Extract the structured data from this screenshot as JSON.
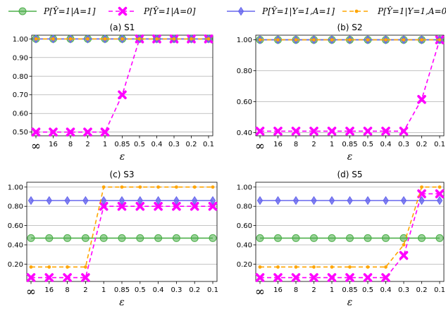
{
  "legend": [
    {
      "label": "P[Ŷ=1|A=1]",
      "color": "#4daf4a",
      "marker": "circle",
      "dash": ""
    },
    {
      "label": "P[Ŷ=1|A=0]",
      "color": "#ff00ff",
      "marker": "x",
      "dash": "6,4"
    },
    {
      "label": "P[Ŷ=1|Y=1,A=1]",
      "color": "#6666ee",
      "marker": "diamond",
      "dash": ""
    },
    {
      "label": "P[Ŷ=1|Y=1,A=0]",
      "color": "#ffa500",
      "marker": "dot",
      "dash": "6,4"
    }
  ],
  "chart_data": [
    {
      "type": "line",
      "title": "(a) S1",
      "xlabel": "ε",
      "categories": [
        "∞",
        "16",
        "8",
        "2",
        "1",
        "0.85",
        "0.5",
        "0.4",
        "0.3",
        "0.2",
        "0.1"
      ],
      "ylim": [
        0.48,
        1.02
      ],
      "yticks": [
        0.5,
        0.6,
        0.7,
        0.8,
        0.9,
        1.0
      ],
      "ytick_labels": [
        "0.50",
        "0.60",
        "0.70",
        "0.80",
        "0.90",
        "1.00"
      ],
      "grid": "y",
      "series": [
        {
          "name": "P[Ŷ=1|A=1]",
          "values": [
            1,
            1,
            1,
            1,
            1,
            1,
            1,
            1,
            1,
            1,
            1
          ]
        },
        {
          "name": "P[Ŷ=1|A=0]",
          "values": [
            0.5,
            0.5,
            0.5,
            0.5,
            0.5,
            0.7,
            1,
            1,
            1,
            1,
            1
          ]
        },
        {
          "name": "P[Ŷ=1|Y=1,A=1]",
          "values": [
            1,
            1,
            1,
            1,
            1,
            1,
            1,
            1,
            1,
            1,
            1
          ]
        },
        {
          "name": "P[Ŷ=1|Y=1,A=0]",
          "values": [
            1,
            1,
            1,
            1,
            1,
            1,
            1,
            1,
            1,
            1,
            1
          ]
        }
      ]
    },
    {
      "type": "line",
      "title": "(b) S2",
      "xlabel": "ε",
      "categories": [
        "∞",
        "16",
        "8",
        "2",
        "1",
        "0.85",
        "0.5",
        "0.4",
        "0.3",
        "0.2",
        "0.1"
      ],
      "ylim": [
        0.38,
        1.03
      ],
      "yticks": [
        0.4,
        0.6,
        0.8,
        1.0
      ],
      "ytick_labels": [
        "0.40",
        "0.60",
        "0.80",
        "1.00"
      ],
      "grid": "y",
      "series": [
        {
          "name": "P[Ŷ=1|A=1]",
          "values": [
            1,
            1,
            1,
            1,
            1,
            1,
            1,
            1,
            1,
            1,
            1
          ]
        },
        {
          "name": "P[Ŷ=1|A=0]",
          "values": [
            0.41,
            0.41,
            0.41,
            0.41,
            0.41,
            0.41,
            0.41,
            0.41,
            0.41,
            0.615,
            1
          ]
        },
        {
          "name": "P[Ŷ=1|Y=1,A=1]",
          "values": [
            1,
            1,
            1,
            1,
            1,
            1,
            1,
            1,
            1,
            1,
            1
          ]
        },
        {
          "name": "P[Ŷ=1|Y=1,A=0]",
          "values": [
            1,
            1,
            1,
            1,
            1,
            1,
            1,
            1,
            1,
            1,
            1
          ]
        }
      ]
    },
    {
      "type": "line",
      "title": "(c) S3",
      "xlabel": "ε",
      "categories": [
        "∞",
        "16",
        "8",
        "2",
        "1",
        "0.85",
        "0.5",
        "0.4",
        "0.3",
        "0.2",
        "0.1"
      ],
      "ylim": [
        0.02,
        1.05
      ],
      "yticks": [
        0.2,
        0.4,
        0.6,
        0.8,
        1.0
      ],
      "ytick_labels": [
        "0.20",
        "0.40",
        "0.60",
        "0.80",
        "1.00"
      ],
      "grid": "y",
      "series": [
        {
          "name": "P[Ŷ=1|A=1]",
          "values": [
            0.47,
            0.47,
            0.47,
            0.47,
            0.47,
            0.47,
            0.47,
            0.47,
            0.47,
            0.47,
            0.47
          ]
        },
        {
          "name": "P[Ŷ=1|A=0]",
          "values": [
            0.06,
            0.06,
            0.06,
            0.06,
            0.8,
            0.8,
            0.8,
            0.8,
            0.8,
            0.8,
            0.8
          ]
        },
        {
          "name": "P[Ŷ=1|Y=1,A=1]",
          "values": [
            0.86,
            0.86,
            0.86,
            0.86,
            0.86,
            0.86,
            0.86,
            0.86,
            0.86,
            0.86,
            0.86
          ]
        },
        {
          "name": "P[Ŷ=1|Y=1,A=0]",
          "values": [
            0.17,
            0.17,
            0.17,
            0.17,
            1,
            1,
            1,
            1,
            1,
            1,
            1
          ]
        }
      ]
    },
    {
      "type": "line",
      "title": "(d) S5",
      "xlabel": "ε",
      "categories": [
        "∞",
        "16",
        "8",
        "2",
        "1",
        "0.85",
        "0.5",
        "0.4",
        "0.3",
        "0.2",
        "0.1"
      ],
      "ylim": [
        0.02,
        1.05
      ],
      "yticks": [
        0.2,
        0.4,
        0.6,
        0.8,
        1.0
      ],
      "ytick_labels": [
        "0.20",
        "0.40",
        "0.60",
        "0.80",
        "1.00"
      ],
      "grid": "y",
      "series": [
        {
          "name": "P[Ŷ=1|A=1]",
          "values": [
            0.47,
            0.47,
            0.47,
            0.47,
            0.47,
            0.47,
            0.47,
            0.47,
            0.47,
            0.47,
            0.47
          ]
        },
        {
          "name": "P[Ŷ=1|A=0]",
          "values": [
            0.06,
            0.06,
            0.06,
            0.06,
            0.06,
            0.06,
            0.06,
            0.06,
            0.29,
            0.93,
            0.93
          ]
        },
        {
          "name": "P[Ŷ=1|Y=1,A=1]",
          "values": [
            0.86,
            0.86,
            0.86,
            0.86,
            0.86,
            0.86,
            0.86,
            0.86,
            0.86,
            0.86,
            0.86
          ]
        },
        {
          "name": "P[Ŷ=1|Y=1,A=0]",
          "values": [
            0.17,
            0.17,
            0.17,
            0.17,
            0.17,
            0.17,
            0.17,
            0.17,
            0.4,
            1,
            1
          ]
        }
      ]
    }
  ]
}
